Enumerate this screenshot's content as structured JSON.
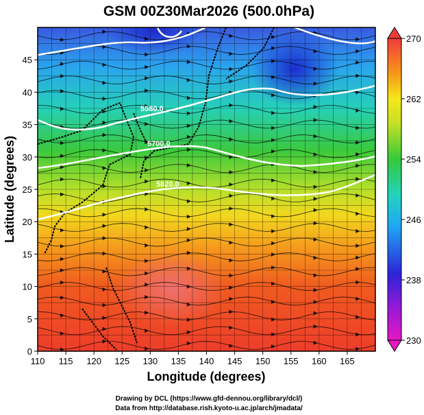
{
  "title": "GSM 00Z30Mar2026 (500.0hPa)",
  "x_axis": {
    "label": "Longitude (degrees)",
    "range": [
      110,
      170
    ],
    "ticks": [
      110,
      115,
      120,
      125,
      130,
      135,
      140,
      145,
      150,
      155,
      160,
      165
    ]
  },
  "y_axis": {
    "label": "Latitude  (degrees)",
    "range": [
      0,
      50
    ],
    "ticks": [
      0,
      5,
      10,
      15,
      20,
      25,
      30,
      35,
      40,
      45
    ]
  },
  "colorbar": {
    "range": [
      230,
      270
    ],
    "ticks": [
      230,
      238,
      246,
      254,
      262,
      270
    ],
    "colors": [
      "#e817c4",
      "#2c24d8",
      "#1fa8f2",
      "#22d3c0",
      "#35c93a",
      "#f5e81a",
      "#f79b18",
      "#f0501e",
      "#f03b3b"
    ]
  },
  "contours": {
    "labels": [
      "5580.0",
      "5700.0",
      "5820.0"
    ],
    "color": "#ffffff"
  },
  "credits": {
    "line1": "Drawing by DCL (https://www.gfd-dennou.org/library/dcl/)",
    "line2": "Data from http://database.rish.kyoto-u.ac.jp/arch/jmadata/"
  }
}
